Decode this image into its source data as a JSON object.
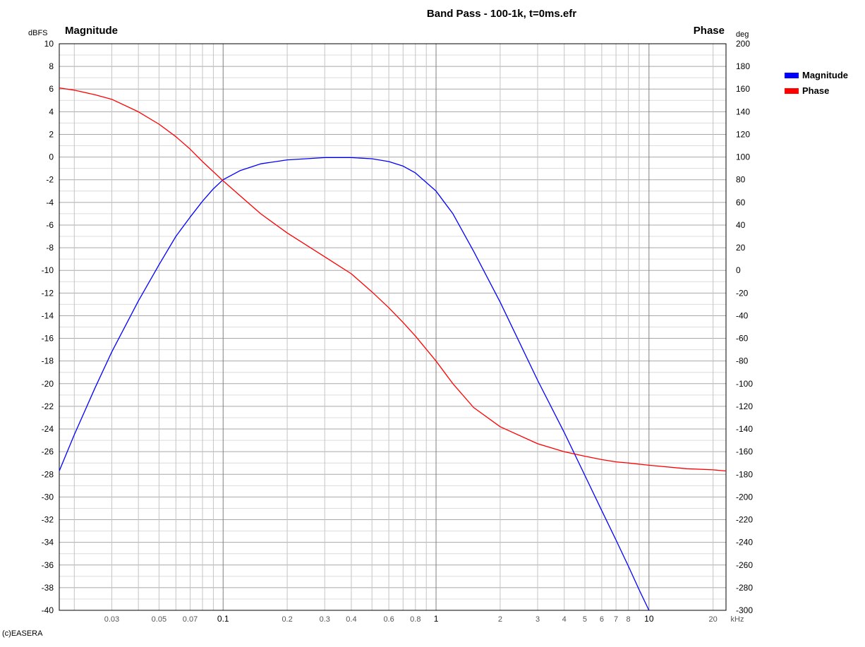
{
  "copyright": "(c)EASERA",
  "chart_data": {
    "type": "line",
    "title": "Band Pass - 100-1k, t=0ms.efr",
    "left_axis": {
      "heading": "Magnitude",
      "unit": "dBFS",
      "range": [
        -40,
        10
      ],
      "step": 2
    },
    "right_axis": {
      "heading": "Phase",
      "unit": "deg",
      "range": [
        -300,
        200
      ],
      "step": 20
    },
    "x_axis": {
      "unit": "kHz",
      "scale": "log",
      "range": [
        0.017,
        23
      ],
      "ticks": [
        {
          "value": 0.03,
          "label": "0.03"
        },
        {
          "value": 0.05,
          "label": "0.05"
        },
        {
          "value": 0.07,
          "label": "0.07"
        },
        {
          "value": 0.1,
          "label": "0.1"
        },
        {
          "value": 0.2,
          "label": "0.2"
        },
        {
          "value": 0.3,
          "label": "0.3"
        },
        {
          "value": 0.4,
          "label": "0.4"
        },
        {
          "value": 0.6,
          "label": "0.6"
        },
        {
          "value": 0.8,
          "label": "0.8"
        },
        {
          "value": 1,
          "label": "1"
        },
        {
          "value": 2,
          "label": "2"
        },
        {
          "value": 3,
          "label": "3"
        },
        {
          "value": 4,
          "label": "4"
        },
        {
          "value": 5,
          "label": "5"
        },
        {
          "value": 6,
          "label": "6"
        },
        {
          "value": 7,
          "label": "7"
        },
        {
          "value": 8,
          "label": "8"
        },
        {
          "value": 10,
          "label": "10"
        },
        {
          "value": 20,
          "label": "20"
        }
      ]
    },
    "grid": true,
    "legend": {
      "position": "top-right"
    },
    "series": [
      {
        "name": "Magnitude",
        "axis": "left",
        "color": "#0000ff",
        "x": [
          0.017,
          0.02,
          0.025,
          0.03,
          0.04,
          0.05,
          0.06,
          0.07,
          0.08,
          0.09,
          0.1,
          0.12,
          0.15,
          0.2,
          0.3,
          0.4,
          0.5,
          0.6,
          0.7,
          0.8,
          1,
          1.2,
          1.5,
          2,
          3,
          4,
          5,
          6,
          7,
          8,
          9,
          10
        ],
        "values": [
          -27.7,
          -24.5,
          -20.4,
          -17.2,
          -12.7,
          -9.5,
          -7.0,
          -5.3,
          -3.9,
          -2.8,
          -2.0,
          -1.2,
          -0.6,
          -0.25,
          -0.05,
          -0.05,
          -0.15,
          -0.4,
          -0.8,
          -1.4,
          -3.0,
          -5.0,
          -8.3,
          -12.8,
          -19.7,
          -24.3,
          -28.1,
          -31.2,
          -33.8,
          -36.1,
          -38.2,
          -40.0
        ]
      },
      {
        "name": "Phase",
        "axis": "right",
        "color": "#ff0000",
        "x": [
          0.017,
          0.02,
          0.025,
          0.03,
          0.04,
          0.05,
          0.06,
          0.07,
          0.08,
          0.1,
          0.12,
          0.15,
          0.2,
          0.3,
          0.4,
          0.5,
          0.6,
          0.7,
          0.8,
          1,
          1.2,
          1.5,
          2,
          3,
          4,
          5,
          6,
          7,
          8,
          10,
          15,
          20,
          23
        ],
        "values": [
          161,
          159,
          155,
          151,
          140,
          129,
          118,
          107,
          96,
          79,
          66,
          50,
          33,
          12,
          -3,
          -19,
          -33,
          -46,
          -58,
          -80,
          -100,
          -121,
          -138,
          -153,
          -160,
          -164,
          -167,
          -169,
          -170,
          -172,
          -175,
          -176,
          -177
        ]
      }
    ]
  }
}
